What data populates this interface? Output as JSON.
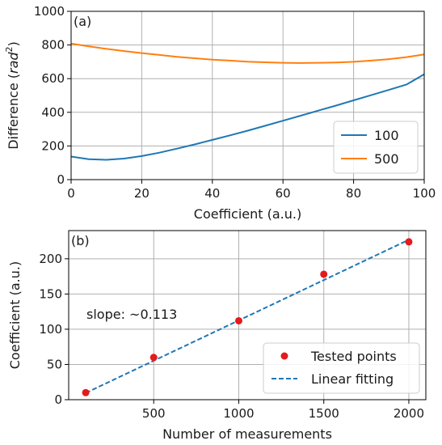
{
  "chart_data": [
    {
      "type": "line",
      "panel_label": "(a)",
      "xlabel": "Coefficient (a.u.)",
      "ylabel_main": "Difference (",
      "ylabel_unit": "rad",
      "ylabel_sup": "2",
      "ylabel_close": ")",
      "xlim": [
        0,
        100
      ],
      "ylim": [
        0,
        1000
      ],
      "xticks": [
        0,
        20,
        40,
        60,
        80,
        100
      ],
      "yticks": [
        0,
        200,
        400,
        600,
        800,
        1000
      ],
      "grid": true,
      "legend_placement": "lower-right",
      "series": [
        {
          "name": "100",
          "color": "#1f77b4",
          "x": [
            0,
            5,
            10,
            15,
            20,
            25,
            30,
            35,
            40,
            45,
            50,
            55,
            60,
            65,
            70,
            75,
            80,
            85,
            90,
            95,
            100
          ],
          "y": [
            137,
            121,
            118,
            125,
            140,
            160,
            184,
            209,
            236,
            263,
            291,
            320,
            350,
            380,
            410,
            440,
            471,
            502,
            533,
            565,
            626
          ]
        },
        {
          "name": "500",
          "color": "#ff7f0e",
          "x": [
            0,
            5,
            10,
            15,
            20,
            25,
            30,
            35,
            40,
            45,
            50,
            55,
            60,
            65,
            70,
            75,
            80,
            85,
            90,
            95,
            100
          ],
          "y": [
            808,
            792,
            777,
            764,
            752,
            741,
            730,
            721,
            713,
            707,
            701,
            697,
            694,
            693,
            694,
            696,
            700,
            707,
            716,
            728,
            744
          ]
        }
      ]
    },
    {
      "type": "scatter",
      "panel_label": "(b)",
      "xlabel": "Number of measurements",
      "ylabel": "Coefficient (a.u.)",
      "xlim": [
        0,
        2100
      ],
      "ylim": [
        0,
        240
      ],
      "xticks": [
        500,
        1000,
        1500,
        2000
      ],
      "yticks": [
        0,
        50,
        100,
        150,
        200
      ],
      "grid": true,
      "legend_placement": "lower-right",
      "annotation": "slope: ~0.113",
      "points": {
        "name": "Tested points",
        "color": "#e41a1c",
        "x": [
          100,
          500,
          1000,
          1500,
          2000
        ],
        "y": [
          10,
          60,
          112,
          178,
          224
        ]
      },
      "fit": {
        "name": "Linear fitting",
        "color": "#1f77b4",
        "x": [
          100,
          2000
        ],
        "y": [
          9.5,
          227
        ]
      }
    }
  ]
}
